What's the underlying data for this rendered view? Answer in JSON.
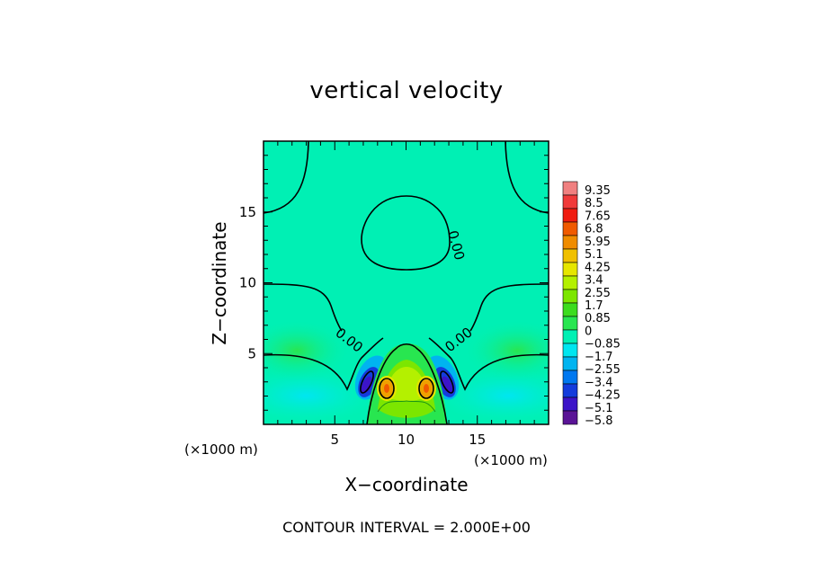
{
  "chart_data": {
    "type": "heatmap",
    "title": "vertical velocity",
    "xlabel": "X−coordinate",
    "ylabel": "Z−coordinate",
    "x_unit_label": "(×1000 m)",
    "y_unit_label": "(×1000 m)",
    "xlim": [
      0,
      20
    ],
    "ylim": [
      0,
      20
    ],
    "x_ticks": [
      "5",
      "10",
      "15"
    ],
    "y_ticks": [
      "5",
      "10",
      "15"
    ],
    "x_tick_values": [
      5,
      10,
      15
    ],
    "y_tick_values": [
      5,
      10,
      15
    ],
    "contour_labels": [
      "0.00",
      "0.00",
      "0.00"
    ],
    "contour_interval_text": "CONTOUR INTERVAL = 2.000E+00",
    "colorbar": {
      "labels": [
        "9.35",
        "8.5",
        "7.65",
        "6.8",
        "5.95",
        "5.1",
        "4.25",
        "3.4",
        "2.55",
        "1.7",
        "0.85",
        "0",
        "−0.85",
        "−1.7",
        "−2.55",
        "−3.4",
        "−4.25",
        "−5.1",
        "−5.8"
      ],
      "colors": [
        "#f08080",
        "#f03a3a",
        "#f01c10",
        "#f05a00",
        "#f08c00",
        "#f0c000",
        "#e6e600",
        "#b4f000",
        "#7ce600",
        "#3cdc1e",
        "#28e650",
        "#00f0b4",
        "#00e6f0",
        "#00b4f0",
        "#0078f0",
        "#143cdc",
        "#3c14c8",
        "#5a1496"
      ]
    },
    "features": [
      {
        "kind": "updraft_core",
        "x": 8.5,
        "z": 2.6,
        "value_approx": 6.0
      },
      {
        "kind": "updraft_core",
        "x": 11.5,
        "z": 2.6,
        "value_approx": 6.0
      },
      {
        "kind": "downdraft",
        "x": 7.2,
        "z": 3.0,
        "value_approx": -4.5
      },
      {
        "kind": "downdraft",
        "x": 12.8,
        "z": 3.0,
        "value_approx": -4.5
      }
    ],
    "grid": false,
    "legend": "right"
  }
}
